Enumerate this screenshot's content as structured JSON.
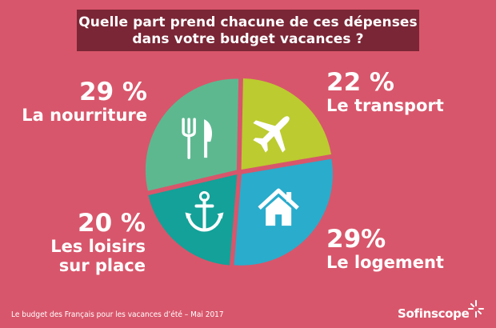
{
  "title": {
    "line1": "Quelle part prend chacune de ces dépenses",
    "line2": "dans votre budget vacances ?"
  },
  "chart_data": {
    "type": "pie",
    "slices": [
      {
        "label": "Le transport",
        "value": 22,
        "value_label": "22 %",
        "color": "#bccb2f",
        "icon": "airplane-icon"
      },
      {
        "label": "Le logement",
        "value": 29,
        "value_label": "29%",
        "color": "#2aaccc",
        "icon": "house-icon"
      },
      {
        "label": "Les loisirs sur place",
        "label_line1": "Les loisirs",
        "label_line2": "sur place",
        "value": 20,
        "value_label": "20 %",
        "color": "#13a199",
        "icon": "anchor-icon"
      },
      {
        "label": "La nourriture",
        "value": 29,
        "value_label": "29 %",
        "color": "#5db890",
        "icon": "fork-knife-icon"
      }
    ]
  },
  "footer": {
    "source": "Le budget des Français pour les vacances d’été – Mai 2017",
    "brand": "Sofinscope"
  },
  "colors": {
    "background": "#d8566b",
    "title_box": "#7a2636"
  }
}
